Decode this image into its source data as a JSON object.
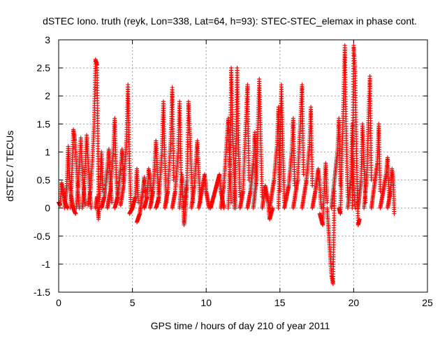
{
  "chart_data": {
    "type": "scatter",
    "title": "dSTEC Iono. truth (reyk, Lon=338, Lat=64, h=93): STEC-STEC_elemax in phase cont.",
    "xlabel": "GPS time / hours of day 210 of year 2011",
    "ylabel": "dSTEC  / TECUs",
    "xlim": [
      0,
      25
    ],
    "ylim": [
      -1.5,
      3
    ],
    "xticks": [
      0,
      5,
      10,
      15,
      20,
      25
    ],
    "xtick_labels": [
      "0",
      "5",
      "10",
      "15",
      "20",
      "25"
    ],
    "yticks": [
      -1.5,
      -1,
      -0.5,
      0,
      0.5,
      1,
      1.5,
      2,
      2.5,
      3
    ],
    "ytick_labels": [
      "-1.5",
      "-1",
      "-0.5",
      "0",
      "0.5",
      "1",
      "1.5",
      "2",
      "2.5",
      "3"
    ],
    "grid": true,
    "marker": "+",
    "color": "#ff0000",
    "x_data_range": [
      0,
      22.75
    ],
    "arcs": [
      {
        "x": [
          0.0,
          0.1,
          0.2,
          0.3,
          0.4,
          0.5,
          0.6
        ],
        "y": [
          0.1,
          0.05,
          0.45,
          0.3,
          0.15,
          0.05,
          0.0
        ]
      },
      {
        "x": [
          0.4,
          0.55,
          0.65,
          0.75,
          0.85,
          0.95,
          1.05,
          1.15
        ],
        "y": [
          0.0,
          0.4,
          1.1,
          0.5,
          0.2,
          0.05,
          -0.05,
          -0.1
        ]
      },
      {
        "x": [
          0.8,
          0.9,
          1.0,
          1.1,
          1.2,
          1.3,
          1.4
        ],
        "y": [
          0.0,
          0.6,
          1.4,
          1.2,
          0.8,
          0.3,
          0.0
        ]
      },
      {
        "x": [
          1.2,
          1.35,
          1.5,
          1.6,
          1.7,
          1.8
        ],
        "y": [
          0.0,
          0.5,
          1.25,
          0.7,
          0.3,
          0.05
        ]
      },
      {
        "x": [
          1.6,
          1.75,
          1.9,
          2.0,
          2.1,
          2.2
        ],
        "y": [
          0.0,
          0.4,
          1.3,
          0.8,
          0.3,
          0.0
        ]
      },
      {
        "x": [
          2.0,
          2.15,
          2.3,
          2.4,
          2.5,
          2.6,
          2.7
        ],
        "y": [
          0.05,
          0.3,
          0.9,
          1.5,
          2.65,
          2.55,
          0.2
        ]
      },
      {
        "x": [
          2.5,
          2.6,
          2.7,
          2.8,
          2.9,
          3.0
        ],
        "y": [
          0.0,
          0.2,
          -0.2,
          0.4,
          1.0,
          0.3
        ]
      },
      {
        "x": [
          2.9,
          3.1,
          3.3,
          3.4,
          3.5,
          3.6
        ],
        "y": [
          0.0,
          0.2,
          0.7,
          1.05,
          0.5,
          0.1
        ]
      },
      {
        "x": [
          3.3,
          3.5,
          3.7,
          3.8,
          3.9,
          4.0
        ],
        "y": [
          0.0,
          0.3,
          1.0,
          1.6,
          0.6,
          0.1
        ]
      },
      {
        "x": [
          3.8,
          4.0,
          4.2,
          4.3,
          4.4
        ],
        "y": [
          0.0,
          0.2,
          0.7,
          1.05,
          0.4
        ]
      },
      {
        "x": [
          4.2,
          4.4,
          4.6,
          4.7,
          4.8,
          4.9
        ],
        "y": [
          0.05,
          0.4,
          1.2,
          2.2,
          0.8,
          0.0
        ]
      },
      {
        "x": [
          4.8,
          5.0,
          5.2,
          5.3,
          5.4
        ],
        "y": [
          -0.1,
          0.0,
          0.2,
          0.7,
          0.1
        ]
      },
      {
        "x": [
          5.3,
          5.5,
          5.6,
          5.7,
          5.8,
          5.9
        ],
        "y": [
          -0.25,
          -0.1,
          0.1,
          0.3,
          0.55,
          0.2
        ]
      },
      {
        "x": [
          5.8,
          6.0,
          6.1,
          6.2,
          6.3
        ],
        "y": [
          0.0,
          0.2,
          0.7,
          0.5,
          0.1
        ]
      },
      {
        "x": [
          6.2,
          6.4,
          6.6,
          6.7,
          6.8
        ],
        "y": [
          0.0,
          0.3,
          1.2,
          0.6,
          0.1
        ]
      },
      {
        "x": [
          6.6,
          6.8,
          7.0,
          7.1,
          7.2,
          7.3
        ],
        "y": [
          0.0,
          0.2,
          1.0,
          1.9,
          0.8,
          0.1
        ]
      },
      {
        "x": [
          7.2,
          7.4,
          7.6,
          7.7,
          7.8
        ],
        "y": [
          0.0,
          0.3,
          1.2,
          2.15,
          0.5
        ]
      },
      {
        "x": [
          7.7,
          7.9,
          8.1,
          8.2,
          8.3
        ],
        "y": [
          0.0,
          0.3,
          1.0,
          1.9,
          0.6
        ]
      },
      {
        "x": [
          8.2,
          8.35,
          8.5,
          8.6,
          8.7
        ],
        "y": [
          0.0,
          0.6,
          -0.3,
          0.0,
          0.4
        ]
      },
      {
        "x": [
          8.5,
          8.7,
          8.8,
          8.9,
          9.0,
          9.1
        ],
        "y": [
          0.0,
          0.5,
          1.9,
          1.3,
          0.6,
          0.1
        ]
      },
      {
        "x": [
          9.0,
          9.2,
          9.4,
          9.5,
          9.6
        ],
        "y": [
          0.0,
          0.4,
          1.2,
          0.6,
          0.1
        ]
      },
      {
        "x": [
          9.5,
          9.7,
          9.9,
          10.0,
          10.2
        ],
        "y": [
          0.0,
          0.3,
          0.6,
          0.3,
          0.0
        ]
      },
      {
        "x": [
          10.3,
          10.5,
          10.7,
          10.9,
          11.0,
          11.2
        ],
        "y": [
          0.0,
          0.2,
          0.4,
          0.6,
          0.3,
          0.0
        ]
      },
      {
        "x": [
          11.0,
          11.2,
          11.4,
          11.5,
          11.6,
          11.7
        ],
        "y": [
          0.0,
          0.4,
          1.2,
          1.6,
          0.8,
          0.1
        ]
      },
      {
        "x": [
          11.5,
          11.6,
          11.7,
          11.8,
          11.9,
          12.0
        ],
        "y": [
          0.0,
          0.6,
          2.5,
          1.3,
          0.6,
          0.0
        ]
      },
      {
        "x": [
          11.9,
          12.0,
          12.1,
          12.2,
          12.3
        ],
        "y": [
          0.0,
          0.8,
          2.5,
          1.0,
          0.2
        ]
      },
      {
        "x": [
          12.3,
          12.5,
          12.7,
          12.8,
          12.9
        ],
        "y": [
          0.0,
          0.3,
          1.6,
          2.2,
          0.5
        ]
      },
      {
        "x": [
          12.8,
          13.0,
          13.2,
          13.3,
          13.4
        ],
        "y": [
          0.0,
          0.3,
          0.8,
          1.35,
          0.4
        ]
      },
      {
        "x": [
          13.2,
          13.4,
          13.5,
          13.6,
          13.7,
          13.8
        ],
        "y": [
          0.0,
          0.5,
          1.4,
          2.3,
          1.2,
          0.2
        ]
      },
      {
        "x": [
          13.8,
          14.0,
          14.2,
          14.3,
          14.5
        ],
        "y": [
          0.0,
          0.4,
          0.1,
          -0.2,
          0.0
        ]
      },
      {
        "x": [
          14.3,
          14.6,
          14.8,
          14.9,
          15.0
        ],
        "y": [
          0.0,
          0.5,
          1.1,
          1.8,
          0.3
        ]
      },
      {
        "x": [
          14.9,
          15.0,
          15.1,
          15.2,
          15.3
        ],
        "y": [
          0.0,
          0.9,
          2.2,
          1.0,
          0.1
        ]
      },
      {
        "x": [
          15.3,
          15.6,
          15.8,
          15.9,
          16.0
        ],
        "y": [
          0.0,
          0.4,
          1.0,
          1.6,
          0.4
        ]
      },
      {
        "x": [
          15.9,
          16.2,
          16.4,
          16.5,
          16.6
        ],
        "y": [
          0.0,
          0.5,
          1.6,
          2.2,
          0.6
        ]
      },
      {
        "x": [
          16.5,
          16.8,
          17.0,
          17.1,
          17.2
        ],
        "y": [
          0.0,
          0.5,
          1.1,
          1.8,
          0.4
        ]
      },
      {
        "x": [
          17.2,
          17.4,
          17.6,
          17.7,
          17.8
        ],
        "y": [
          0.0,
          0.3,
          0.7,
          0.4,
          0.0
        ]
      },
      {
        "x": [
          17.7,
          17.9,
          18.0,
          18.1,
          18.2
        ],
        "y": [
          -0.1,
          -0.3,
          0.3,
          0.8,
          0.1
        ]
      },
      {
        "x": [
          18.2,
          18.3,
          18.4,
          18.5,
          18.6,
          18.7
        ],
        "y": [
          0.0,
          -0.4,
          -0.8,
          -1.2,
          -1.35,
          0.3
        ]
      },
      {
        "x": [
          18.5,
          18.7,
          18.9,
          19.0,
          19.1
        ],
        "y": [
          0.0,
          0.5,
          1.0,
          1.6,
          0.4
        ]
      },
      {
        "x": [
          19.0,
          19.1,
          19.3,
          19.4,
          19.5,
          19.6
        ],
        "y": [
          0.0,
          -0.1,
          1.8,
          2.9,
          1.2,
          0.2
        ]
      },
      {
        "x": [
          19.6,
          19.8,
          19.9,
          20.0,
          20.1
        ],
        "y": [
          0.0,
          0.5,
          1.5,
          0.4,
          0.0
        ]
      },
      {
        "x": [
          19.9,
          20.0,
          20.1,
          20.2,
          20.3,
          20.4
        ],
        "y": [
          0.0,
          2.9,
          2.4,
          0.8,
          -0.3,
          -0.2
        ]
      },
      {
        "x": [
          20.3,
          20.5,
          20.6,
          20.7,
          20.8
        ],
        "y": [
          0.0,
          0.5,
          1.5,
          0.8,
          0.1
        ]
      },
      {
        "x": [
          20.7,
          20.9,
          21.0,
          21.1,
          21.2
        ],
        "y": [
          0.0,
          0.6,
          1.6,
          2.35,
          0.5
        ]
      },
      {
        "x": [
          21.2,
          21.4,
          21.6,
          21.7,
          21.8
        ],
        "y": [
          0.0,
          0.4,
          0.8,
          1.5,
          0.3
        ]
      },
      {
        "x": [
          21.8,
          22.0,
          22.2,
          22.3,
          22.4
        ],
        "y": [
          0.0,
          0.3,
          0.6,
          0.9,
          0.2
        ]
      },
      {
        "x": [
          22.3,
          22.5,
          22.6,
          22.7,
          22.75
        ],
        "y": [
          0.0,
          0.3,
          0.7,
          0.4,
          -0.1
        ]
      }
    ]
  }
}
